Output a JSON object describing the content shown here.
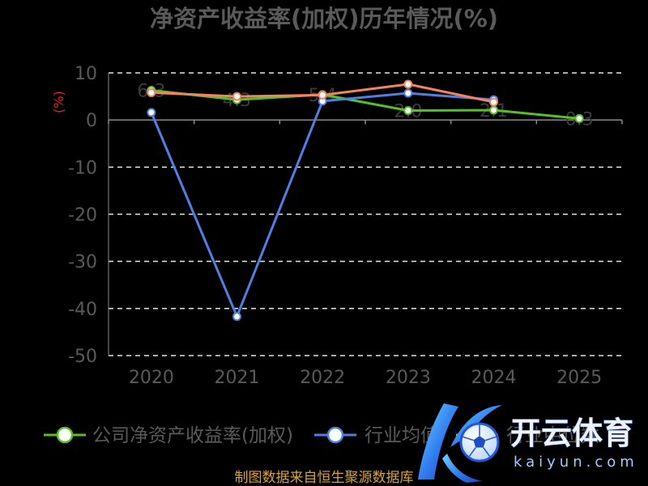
{
  "chart_data": {
    "type": "line",
    "title": "净资产收益率(加权)历年情况(%)",
    "ylabel": "(%)",
    "categories": [
      "2020",
      "2021",
      "2022",
      "2023",
      "2024",
      "2025"
    ],
    "ylim": [
      -50,
      10
    ],
    "yticks": [
      10,
      0,
      -10,
      -20,
      -30,
      -40,
      -50
    ],
    "grid": true,
    "legend_position": "bottom",
    "series": [
      {
        "name": "公司净资产收益率(加权)",
        "color": "#55c127",
        "values": [
          6.3,
          4.3,
          5.4,
          2.0,
          2.1,
          0.3
        ],
        "show_labels": true
      },
      {
        "name": "行业均值",
        "color": "#4f80e1",
        "values": [
          1.6,
          -41.7,
          4.0,
          5.7,
          4.3,
          null
        ],
        "show_labels": false
      },
      {
        "name": "行业中位数",
        "color": "#f4845f",
        "values": [
          5.8,
          5.0,
          5.3,
          7.6,
          3.8,
          null
        ],
        "show_labels": false
      }
    ]
  },
  "footer": {
    "source": "制图数据来自恒生聚源数据库"
  },
  "watermark": {
    "brand": "开云体育",
    "site": "kaiyun.com",
    "icon": "kaiyun-logo-icon"
  },
  "colors": {
    "background": "#000000",
    "text": "#5a5a5a",
    "grid": "#e6e6e6",
    "axis": "#8c8c8c",
    "ylabel": "#e2231a",
    "data_label": "#3c3c3c",
    "footer": "#d9a23a"
  }
}
